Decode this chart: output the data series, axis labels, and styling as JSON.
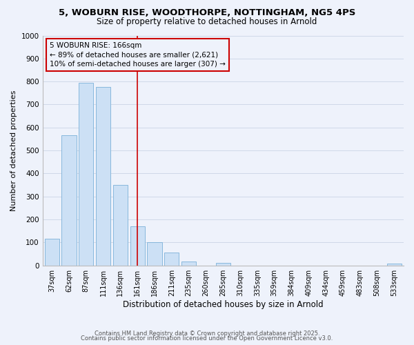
{
  "title": "5, WOBURN RISE, WOODTHORPE, NOTTINGHAM, NG5 4PS",
  "subtitle": "Size of property relative to detached houses in Arnold",
  "xlabel": "Distribution of detached houses by size in Arnold",
  "ylabel": "Number of detached properties",
  "bar_labels": [
    "37sqm",
    "62sqm",
    "87sqm",
    "111sqm",
    "136sqm",
    "161sqm",
    "186sqm",
    "211sqm",
    "235sqm",
    "260sqm",
    "285sqm",
    "310sqm",
    "335sqm",
    "359sqm",
    "384sqm",
    "409sqm",
    "434sqm",
    "459sqm",
    "483sqm",
    "508sqm",
    "533sqm"
  ],
  "bar_values": [
    115,
    565,
    795,
    775,
    350,
    170,
    100,
    55,
    18,
    0,
    10,
    0,
    0,
    0,
    0,
    0,
    0,
    0,
    0,
    0,
    8
  ],
  "bar_color": "#cce0f5",
  "bar_edge_color": "#7ab0d8",
  "background_color": "#eef2fb",
  "grid_color": "#d0d8e8",
  "vline_x_index": 5,
  "vline_color": "#cc0000",
  "annotation_title": "5 WOBURN RISE: 166sqm",
  "annotation_line1": "← 89% of detached houses are smaller (2,621)",
  "annotation_line2": "10% of semi-detached houses are larger (307) →",
  "annotation_box_color": "#cc0000",
  "ylim": [
    0,
    1000
  ],
  "yticks": [
    0,
    100,
    200,
    300,
    400,
    500,
    600,
    700,
    800,
    900,
    1000
  ],
  "footer_line1": "Contains HM Land Registry data © Crown copyright and database right 2025.",
  "footer_line2": "Contains public sector information licensed under the Open Government Licence v3.0."
}
